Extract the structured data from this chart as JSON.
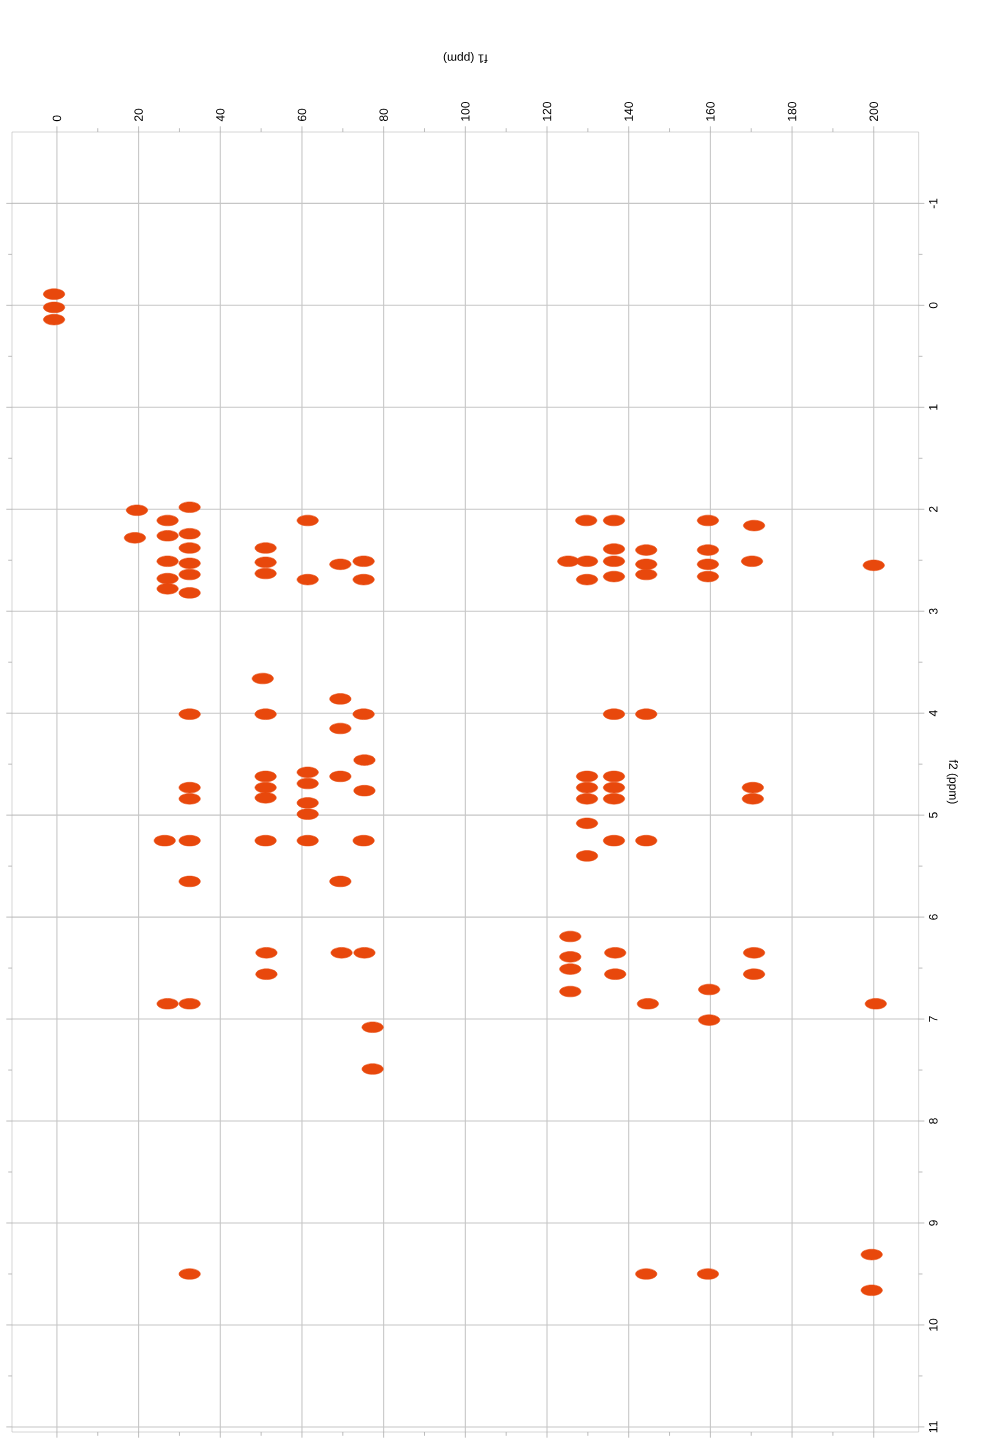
{
  "chart_data": {
    "type": "scatter",
    "xlabel": "f1 (ppm)",
    "ylabel": "f2 (ppm)",
    "x": [
      -0.7,
      -0.7,
      -0.7,
      19.6,
      32.5,
      27.1,
      19.1,
      27.1,
      32.5,
      32.5,
      32.5,
      32.5,
      32.5,
      27.1,
      27.1,
      27.1,
      51.1,
      51.1,
      51.1,
      61.4,
      61.4,
      69.4,
      75.1,
      75.1,
      129.6,
      136.4,
      159.4,
      170.7,
      125.2,
      129.8,
      136.4,
      136.4,
      136.4,
      144.3,
      144.3,
      144.3,
      159.4,
      159.4,
      159.4,
      129.8,
      170.2,
      200.0,
      50.4,
      32.5,
      51.1,
      69.4,
      69.4,
      75.1,
      75.3,
      61.4,
      69.4,
      51.1,
      51.1,
      51.1,
      61.4,
      32.5,
      32.5,
      75.3,
      61.4,
      61.4,
      26.4,
      32.5,
      51.1,
      61.4,
      75.1,
      32.5,
      69.4,
      136.4,
      144.3,
      129.8,
      136.4,
      129.8,
      136.4,
      129.8,
      136.4,
      170.4,
      170.4,
      129.8,
      136.4,
      144.3,
      129.8,
      27.1,
      32.5,
      51.3,
      51.3,
      69.7,
      75.3,
      77.3,
      77.3,
      125.7,
      125.7,
      125.7,
      125.7,
      136.7,
      136.7,
      144.7,
      159.7,
      159.7,
      170.7,
      170.7,
      200.5,
      32.5,
      144.3,
      159.4,
      199.5,
      199.5
    ],
    "values": [
      -0.11,
      0.02,
      0.14,
      2.01,
      1.98,
      2.11,
      2.28,
      2.26,
      2.24,
      2.38,
      2.53,
      2.64,
      2.82,
      2.51,
      2.68,
      2.78,
      2.38,
      2.52,
      2.63,
      2.11,
      2.69,
      2.54,
      2.51,
      2.69,
      2.11,
      2.11,
      2.11,
      2.16,
      2.51,
      2.51,
      2.39,
      2.51,
      2.66,
      2.4,
      2.54,
      2.64,
      2.4,
      2.54,
      2.66,
      2.69,
      2.51,
      2.55,
      3.66,
      4.01,
      4.01,
      3.86,
      4.15,
      4.01,
      4.46,
      4.58,
      4.62,
      4.62,
      4.73,
      4.83,
      4.69,
      4.73,
      4.84,
      4.76,
      4.88,
      4.99,
      5.25,
      5.25,
      5.25,
      5.25,
      5.25,
      5.65,
      5.65,
      4.01,
      4.01,
      4.62,
      4.62,
      4.73,
      4.73,
      4.84,
      4.84,
      4.73,
      4.84,
      5.08,
      5.25,
      5.25,
      5.4,
      6.85,
      6.85,
      6.35,
      6.56,
      6.35,
      6.35,
      7.08,
      7.49,
      6.19,
      6.39,
      6.51,
      6.73,
      6.35,
      6.56,
      6.85,
      6.71,
      7.01,
      6.35,
      6.56,
      6.85,
      9.5,
      9.5,
      9.5,
      9.31,
      9.66
    ],
    "color": "#e8480c",
    "marker": "circle",
    "xlim": [
      -11,
      211
    ],
    "xticks": [
      0,
      20,
      40,
      60,
      80,
      100,
      120,
      140,
      160,
      180,
      200
    ],
    "ylim": [
      11.05,
      -1.7
    ],
    "yticks": [
      -1,
      0,
      1,
      2,
      3,
      4,
      5,
      6,
      7,
      8,
      9,
      10,
      11
    ],
    "grid": true
  }
}
